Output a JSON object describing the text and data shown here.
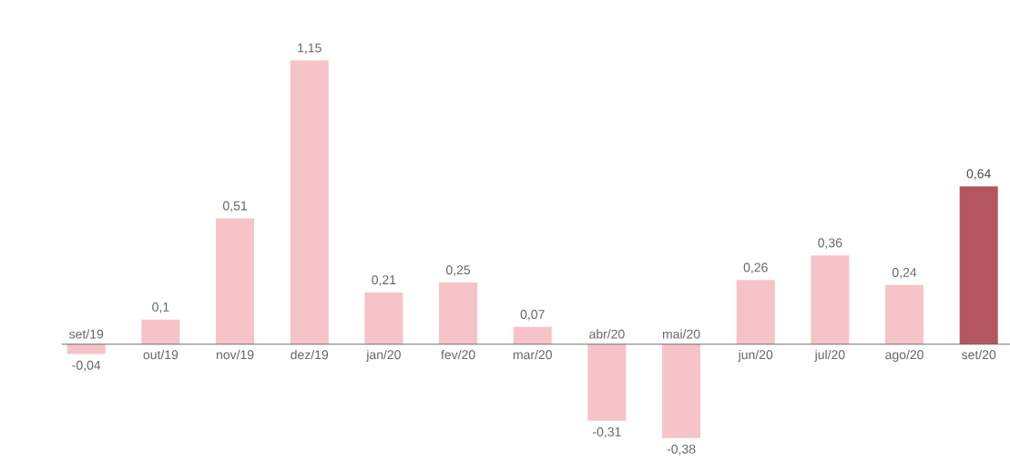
{
  "chart_data": {
    "type": "bar",
    "categories": [
      "set/19",
      "out/19",
      "nov/19",
      "dez/19",
      "jan/20",
      "fev/20",
      "mar/20",
      "abr/20",
      "mai/20",
      "jun/20",
      "jul/20",
      "ago/20",
      "set/20"
    ],
    "values": [
      -0.04,
      0.1,
      0.51,
      1.15,
      0.21,
      0.25,
      0.07,
      -0.31,
      -0.38,
      0.26,
      0.36,
      0.24,
      0.64
    ],
    "value_labels": [
      "-0,04",
      "0,1",
      "0,51",
      "1,15",
      "0,21",
      "0,25",
      "0,07",
      "-0,31",
      "-0,38",
      "0,26",
      "0,36",
      "0,24",
      "0,64"
    ],
    "colors": [
      "#f6c3c8",
      "#f6c3c8",
      "#f6c3c8",
      "#f6c3c8",
      "#f6c3c8",
      "#f6c3c8",
      "#f6c3c8",
      "#f6c3c8",
      "#f6c3c8",
      "#f6c3c8",
      "#f6c3c8",
      "#f6c3c8",
      "#b4565f"
    ]
  }
}
